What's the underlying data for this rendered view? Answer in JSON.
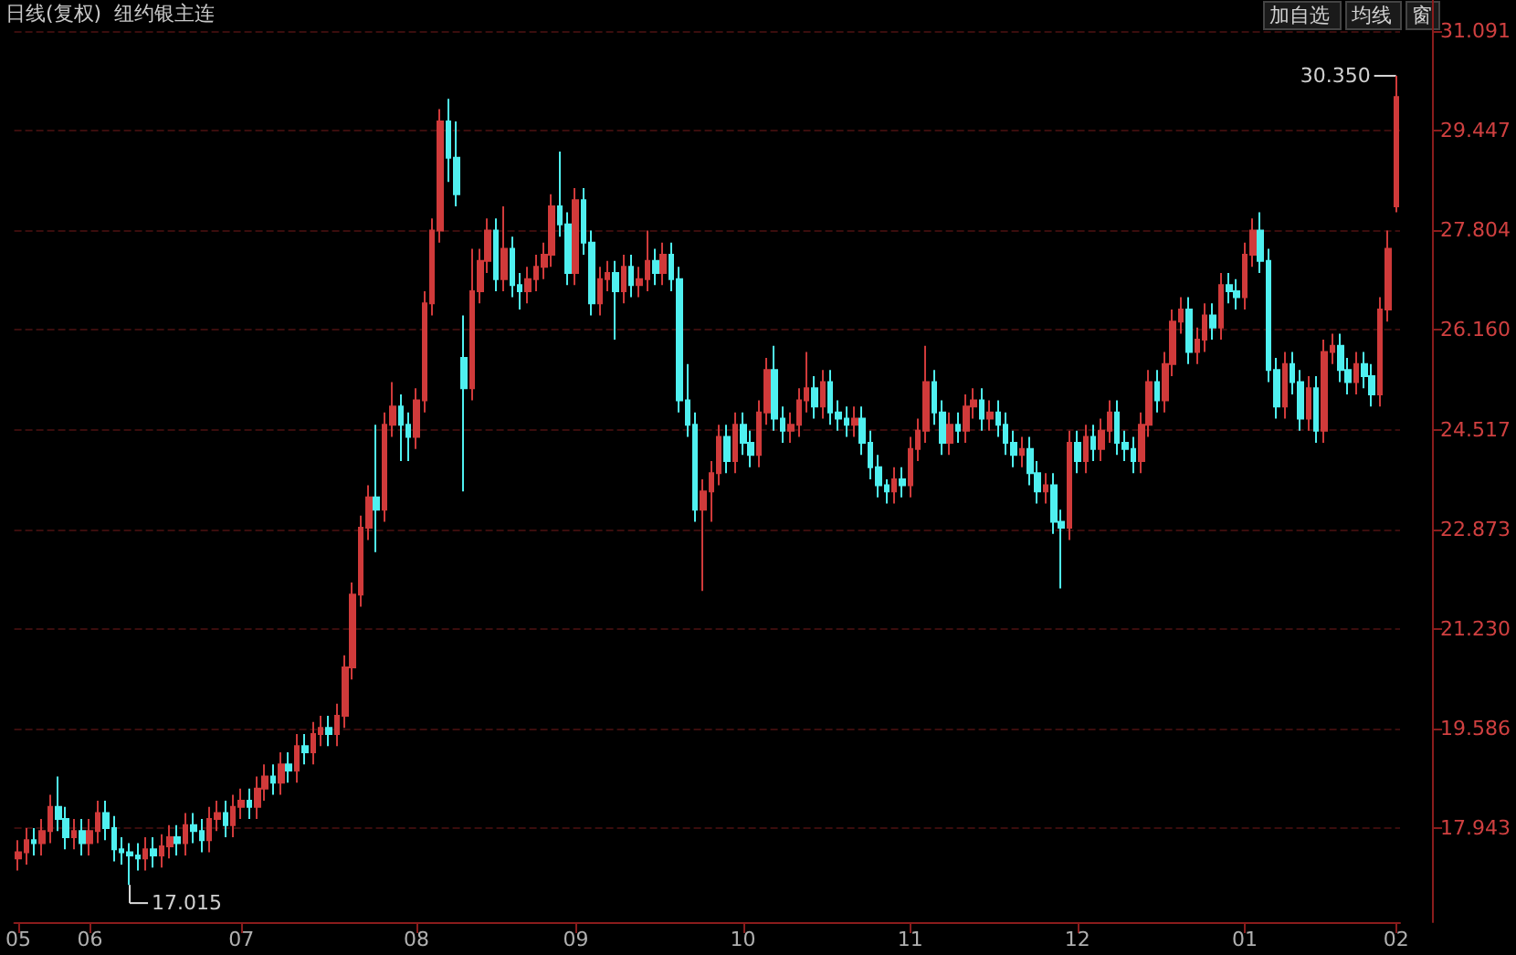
{
  "chart_data": {
    "type": "candlestick",
    "title": "日线(复权)  纽约银主连",
    "annotations": [
      "17.015",
      "加自选",
      "均线",
      "窗",
      {
        "text": "30.350",
        "x": "02",
        "y": 30.35
      }
    ],
    "categories": [
      "05",
      null,
      null,
      null,
      null,
      null,
      null,
      null,
      null,
      "06",
      null,
      null,
      null,
      null,
      null,
      null,
      null,
      null,
      null,
      null,
      null,
      null,
      null,
      null,
      null,
      null,
      null,
      null,
      "07",
      null,
      null,
      null,
      null,
      null,
      null,
      null,
      null,
      null,
      null,
      null,
      null,
      null,
      null,
      null,
      null,
      null,
      null,
      null,
      null,
      null,
      "08",
      null,
      null,
      null,
      null,
      null,
      null,
      null,
      null,
      null,
      null,
      null,
      null,
      null,
      null,
      null,
      null,
      null,
      null,
      null,
      "09",
      null,
      null,
      null,
      null,
      null,
      null,
      null,
      null,
      null,
      null,
      null,
      null,
      null,
      null,
      null,
      null,
      null,
      null,
      null,
      null,
      "10",
      null,
      null,
      null,
      null,
      null,
      null,
      null,
      null,
      null,
      null,
      null,
      null,
      null,
      null,
      null,
      null,
      null,
      null,
      null,
      null,
      "11",
      null,
      null,
      null,
      null,
      null,
      null,
      null,
      null,
      null,
      null,
      null,
      null,
      null,
      null,
      null,
      null,
      null,
      null,
      null,
      null,
      "12",
      null,
      null,
      null,
      null,
      null,
      null,
      null,
      null,
      null,
      null,
      null,
      null,
      null,
      null,
      null,
      null,
      null,
      null,
      null,
      null,
      "01",
      null,
      null,
      null,
      null,
      null,
      null,
      null,
      null,
      null,
      null,
      null,
      null,
      null,
      null,
      null,
      null,
      null,
      null,
      "02"
    ],
    "ohlc": [
      [
        17.45,
        17.75,
        17.25,
        17.55
      ],
      [
        17.55,
        17.95,
        17.35,
        17.75
      ],
      [
        17.75,
        17.95,
        17.5,
        17.7
      ],
      [
        17.7,
        18.1,
        17.5,
        17.9
      ],
      [
        17.9,
        18.5,
        17.7,
        18.3
      ],
      [
        18.3,
        18.8,
        17.9,
        18.1
      ],
      [
        18.1,
        18.3,
        17.6,
        17.8
      ],
      [
        17.8,
        18.1,
        17.6,
        17.9
      ],
      [
        17.9,
        18.1,
        17.5,
        17.7
      ],
      [
        17.7,
        18.1,
        17.5,
        17.9
      ],
      [
        17.9,
        18.4,
        17.7,
        18.2
      ],
      [
        18.2,
        18.4,
        17.75,
        17.95
      ],
      [
        17.95,
        18.15,
        17.4,
        17.6
      ],
      [
        17.6,
        17.8,
        17.35,
        17.55
      ],
      [
        17.55,
        17.7,
        17.015,
        17.5
      ],
      [
        17.5,
        17.7,
        17.25,
        17.45
      ],
      [
        17.45,
        17.8,
        17.25,
        17.6
      ],
      [
        17.6,
        17.8,
        17.3,
        17.5
      ],
      [
        17.5,
        17.85,
        17.3,
        17.65
      ],
      [
        17.65,
        18.0,
        17.45,
        17.8
      ],
      [
        17.8,
        18.0,
        17.5,
        17.7
      ],
      [
        17.7,
        18.2,
        17.5,
        18.0
      ],
      [
        18.0,
        18.2,
        17.7,
        17.9
      ],
      [
        17.9,
        18.1,
        17.55,
        17.75
      ],
      [
        17.75,
        18.3,
        17.55,
        18.1
      ],
      [
        18.1,
        18.4,
        17.9,
        18.2
      ],
      [
        18.2,
        18.4,
        17.8,
        18.0
      ],
      [
        18.0,
        18.5,
        17.8,
        18.3
      ],
      [
        18.3,
        18.6,
        18.1,
        18.4
      ],
      [
        18.4,
        18.6,
        18.1,
        18.3
      ],
      [
        18.3,
        18.8,
        18.1,
        18.6
      ],
      [
        18.6,
        19.0,
        18.4,
        18.8
      ],
      [
        18.8,
        19.0,
        18.5,
        18.7
      ],
      [
        18.7,
        19.2,
        18.5,
        19.0
      ],
      [
        19.0,
        19.2,
        18.7,
        18.9
      ],
      [
        18.9,
        19.5,
        18.7,
        19.3
      ],
      [
        19.3,
        19.5,
        19.0,
        19.2
      ],
      [
        19.2,
        19.7,
        19.0,
        19.5
      ],
      [
        19.5,
        19.8,
        19.3,
        19.6
      ],
      [
        19.6,
        19.8,
        19.3,
        19.5
      ],
      [
        19.5,
        20.0,
        19.3,
        19.8
      ],
      [
        19.8,
        20.8,
        19.6,
        20.6
      ],
      [
        20.6,
        22.0,
        20.4,
        21.8
      ],
      [
        21.8,
        23.1,
        21.6,
        22.9
      ],
      [
        22.9,
        23.6,
        22.7,
        23.4
      ],
      [
        23.4,
        24.6,
        22.5,
        23.2
      ],
      [
        23.2,
        24.8,
        23.0,
        24.6
      ],
      [
        24.6,
        25.3,
        24.4,
        24.9
      ],
      [
        24.9,
        25.1,
        24.0,
        24.6
      ],
      [
        24.6,
        24.8,
        24.0,
        24.4
      ],
      [
        24.4,
        25.2,
        24.2,
        25.0
      ],
      [
        25.0,
        26.8,
        24.8,
        26.6
      ],
      [
        26.6,
        28.0,
        26.4,
        27.8
      ],
      [
        27.8,
        29.8,
        27.6,
        29.6
      ],
      [
        29.6,
        29.97,
        28.6,
        29.0
      ],
      [
        29.0,
        29.6,
        28.2,
        28.4
      ],
      [
        25.7,
        26.4,
        23.5,
        25.2
      ],
      [
        25.2,
        27.5,
        25.0,
        26.8
      ],
      [
        26.8,
        27.5,
        26.6,
        27.3
      ],
      [
        27.3,
        28.0,
        27.1,
        27.8
      ],
      [
        27.8,
        28.0,
        26.8,
        27.0
      ],
      [
        27.0,
        28.2,
        26.8,
        27.5
      ],
      [
        27.5,
        27.7,
        26.7,
        26.9
      ],
      [
        26.9,
        27.1,
        26.5,
        26.8
      ],
      [
        26.8,
        27.2,
        26.6,
        27.0
      ],
      [
        27.0,
        27.4,
        26.8,
        27.2
      ],
      [
        27.2,
        27.6,
        27.0,
        27.4
      ],
      [
        27.4,
        28.4,
        27.2,
        28.2
      ],
      [
        28.2,
        29.1,
        27.7,
        27.9
      ],
      [
        27.9,
        28.1,
        26.9,
        27.1
      ],
      [
        27.1,
        28.5,
        26.9,
        28.3
      ],
      [
        28.3,
        28.5,
        27.4,
        27.6
      ],
      [
        27.6,
        27.8,
        26.4,
        26.6
      ],
      [
        26.6,
        27.2,
        26.4,
        27.0
      ],
      [
        27.0,
        27.3,
        26.8,
        27.1
      ],
      [
        27.1,
        27.3,
        26.0,
        26.8
      ],
      [
        26.8,
        27.4,
        26.6,
        27.2
      ],
      [
        27.2,
        27.4,
        26.7,
        26.9
      ],
      [
        26.9,
        27.2,
        26.7,
        27.0
      ],
      [
        27.0,
        27.8,
        26.8,
        27.3
      ],
      [
        27.3,
        27.5,
        26.9,
        27.1
      ],
      [
        27.1,
        27.6,
        26.9,
        27.4
      ],
      [
        27.4,
        27.6,
        26.8,
        27.0
      ],
      [
        27.0,
        27.2,
        24.8,
        25.0
      ],
      [
        25.0,
        25.6,
        24.4,
        24.6
      ],
      [
        24.6,
        24.8,
        23.0,
        23.2
      ],
      [
        23.2,
        23.7,
        21.86,
        23.5
      ],
      [
        23.5,
        24.0,
        23.0,
        23.8
      ],
      [
        23.8,
        24.6,
        23.6,
        24.4
      ],
      [
        24.4,
        24.6,
        23.8,
        24.0
      ],
      [
        24.0,
        24.8,
        23.8,
        24.6
      ],
      [
        24.6,
        24.8,
        24.1,
        24.3
      ],
      [
        24.3,
        24.5,
        23.9,
        24.1
      ],
      [
        24.1,
        25.0,
        23.9,
        24.8
      ],
      [
        24.8,
        25.7,
        24.6,
        25.5
      ],
      [
        25.5,
        25.9,
        24.5,
        24.7
      ],
      [
        24.7,
        24.9,
        24.3,
        24.5
      ],
      [
        24.5,
        24.8,
        24.3,
        24.6
      ],
      [
        24.6,
        25.2,
        24.4,
        25.0
      ],
      [
        25.0,
        25.8,
        24.8,
        25.2
      ],
      [
        25.2,
        25.4,
        24.7,
        24.9
      ],
      [
        24.9,
        25.5,
        24.7,
        25.3
      ],
      [
        25.3,
        25.5,
        24.6,
        24.8
      ],
      [
        24.8,
        25.0,
        24.5,
        24.7
      ],
      [
        24.7,
        24.9,
        24.4,
        24.6
      ],
      [
        24.6,
        24.9,
        24.4,
        24.7
      ],
      [
        24.7,
        24.9,
        24.1,
        24.3
      ],
      [
        24.3,
        24.5,
        23.7,
        23.9
      ],
      [
        23.9,
        24.1,
        23.4,
        23.6
      ],
      [
        23.6,
        23.7,
        23.3,
        23.5
      ],
      [
        23.5,
        23.9,
        23.3,
        23.7
      ],
      [
        23.7,
        23.9,
        23.4,
        23.6
      ],
      [
        23.6,
        24.4,
        23.4,
        24.2
      ],
      [
        24.2,
        24.7,
        24.0,
        24.5
      ],
      [
        24.5,
        25.9,
        24.3,
        25.3
      ],
      [
        25.3,
        25.5,
        24.6,
        24.8
      ],
      [
        24.8,
        25.0,
        24.1,
        24.3
      ],
      [
        24.3,
        24.8,
        24.1,
        24.6
      ],
      [
        24.6,
        24.8,
        24.3,
        24.5
      ],
      [
        24.5,
        25.1,
        24.3,
        24.9
      ],
      [
        24.9,
        25.2,
        24.7,
        25.0
      ],
      [
        25.0,
        25.2,
        24.5,
        24.7
      ],
      [
        24.7,
        25.0,
        24.5,
        24.8
      ],
      [
        24.8,
        25.0,
        24.4,
        24.6
      ],
      [
        24.6,
        24.8,
        24.1,
        24.3
      ],
      [
        24.3,
        24.5,
        23.9,
        24.1
      ],
      [
        24.1,
        24.4,
        23.9,
        24.2
      ],
      [
        24.2,
        24.4,
        23.6,
        23.8
      ],
      [
        23.8,
        24.0,
        23.3,
        23.5
      ],
      [
        23.5,
        23.8,
        23.3,
        23.6
      ],
      [
        23.6,
        23.8,
        22.8,
        23.0
      ],
      [
        23.0,
        23.2,
        21.9,
        22.9
      ],
      [
        22.9,
        24.5,
        22.7,
        24.3
      ],
      [
        24.3,
        24.5,
        23.8,
        24.0
      ],
      [
        24.0,
        24.6,
        23.8,
        24.4
      ],
      [
        24.4,
        24.6,
        24.0,
        24.2
      ],
      [
        24.2,
        24.7,
        24.0,
        24.5
      ],
      [
        24.5,
        25.0,
        24.3,
        24.8
      ],
      [
        24.8,
        25.0,
        24.1,
        24.3
      ],
      [
        24.3,
        24.5,
        24.0,
        24.2
      ],
      [
        24.2,
        24.4,
        23.8,
        24.0
      ],
      [
        24.0,
        24.8,
        23.8,
        24.6
      ],
      [
        24.6,
        25.5,
        24.4,
        25.3
      ],
      [
        25.3,
        25.5,
        24.8,
        25.0
      ],
      [
        25.0,
        25.8,
        24.8,
        25.6
      ],
      [
        25.6,
        26.5,
        25.4,
        26.3
      ],
      [
        26.3,
        26.7,
        26.1,
        26.5
      ],
      [
        26.5,
        26.7,
        25.6,
        25.8
      ],
      [
        25.8,
        26.2,
        25.6,
        26.0
      ],
      [
        26.0,
        26.6,
        25.8,
        26.4
      ],
      [
        26.4,
        26.6,
        26.0,
        26.2
      ],
      [
        26.2,
        27.1,
        26.0,
        26.9
      ],
      [
        26.9,
        27.1,
        26.6,
        26.8
      ],
      [
        26.8,
        27.0,
        26.5,
        26.7
      ],
      [
        26.7,
        27.6,
        26.5,
        27.4
      ],
      [
        27.4,
        28.0,
        27.2,
        27.8
      ],
      [
        27.8,
        28.1,
        27.1,
        27.3
      ],
      [
        27.3,
        27.5,
        25.3,
        25.5
      ],
      [
        25.5,
        25.7,
        24.7,
        24.9
      ],
      [
        24.9,
        25.8,
        24.7,
        25.6
      ],
      [
        25.6,
        25.8,
        25.1,
        25.3
      ],
      [
        25.3,
        25.5,
        24.5,
        24.7
      ],
      [
        24.7,
        25.4,
        24.5,
        25.2
      ],
      [
        25.2,
        25.4,
        24.3,
        24.5
      ],
      [
        24.5,
        26.0,
        24.3,
        25.8
      ],
      [
        25.8,
        26.1,
        25.6,
        25.9
      ],
      [
        25.9,
        26.1,
        25.3,
        25.5
      ],
      [
        25.5,
        25.7,
        25.1,
        25.3
      ],
      [
        25.3,
        25.8,
        25.1,
        25.6
      ],
      [
        25.6,
        25.8,
        25.2,
        25.4
      ],
      [
        25.4,
        25.6,
        24.9,
        25.1
      ],
      [
        25.1,
        26.7,
        24.9,
        26.5
      ],
      [
        26.5,
        27.8,
        26.3,
        27.5
      ],
      [
        28.2,
        30.35,
        28.1,
        30.0
      ]
    ],
    "ylim": [
      16.4,
      31.6
    ],
    "yticks": [
      {
        "value": 17.943,
        "label": "17.943"
      },
      {
        "value": 19.586,
        "label": "19.586"
      },
      {
        "value": 21.23,
        "label": "21.230"
      },
      {
        "value": 22.873,
        "label": "22.873"
      },
      {
        "value": 24.517,
        "label": "24.517"
      },
      {
        "value": 26.16,
        "label": "26.160"
      },
      {
        "value": 27.804,
        "label": "27.804"
      },
      {
        "value": 29.447,
        "label": "29.447"
      },
      {
        "value": 31.091,
        "label": "31.091"
      }
    ],
    "grid": "y"
  }
}
